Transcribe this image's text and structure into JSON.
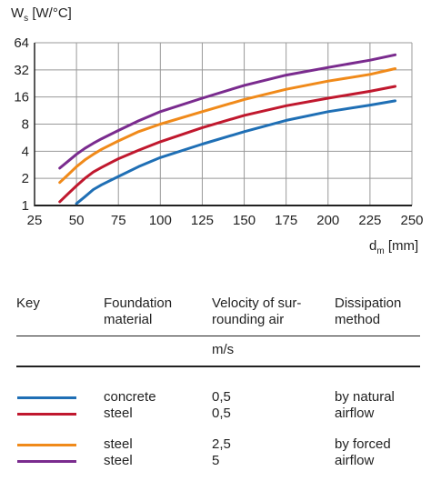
{
  "chart_data": {
    "type": "line",
    "ylabel": "W",
    "ylabel_sub": "s",
    "ylabel_unit": "[W/°C]",
    "xlabel": "d",
    "xlabel_sub": "m",
    "xlabel_unit": "[mm]",
    "xlim": [
      25,
      250
    ],
    "ylim": [
      1,
      64
    ],
    "yscale": "log2",
    "xticks": [
      "25",
      "50",
      "75",
      "100",
      "125",
      "150",
      "175",
      "200",
      "225",
      "250"
    ],
    "yticks": [
      "1",
      "2",
      "4",
      "8",
      "16",
      "32",
      "64"
    ],
    "xtick_values": [
      25,
      50,
      75,
      100,
      125,
      150,
      175,
      200,
      225,
      250
    ],
    "ytick_values": [
      1,
      2,
      4,
      8,
      16,
      32,
      64
    ],
    "grid": true,
    "series": [
      {
        "color": "#1f6fb5",
        "x": [
          50,
          55,
          60,
          65,
          75,
          87,
          100,
          125,
          150,
          175,
          200,
          225,
          240
        ],
        "y": [
          1.05,
          1.25,
          1.5,
          1.7,
          2.1,
          2.7,
          3.4,
          4.8,
          6.6,
          8.8,
          11.0,
          13.0,
          14.5
        ]
      },
      {
        "color": "#c0182e",
        "x": [
          40,
          45,
          50,
          55,
          60,
          65,
          75,
          87,
          100,
          125,
          150,
          175,
          200,
          225,
          240
        ],
        "y": [
          1.1,
          1.35,
          1.65,
          2.0,
          2.35,
          2.65,
          3.3,
          4.1,
          5.1,
          7.3,
          10.0,
          12.8,
          15.5,
          18.5,
          21.0
        ]
      },
      {
        "color": "#f08a1a",
        "x": [
          40,
          45,
          50,
          55,
          60,
          65,
          75,
          87,
          100,
          125,
          150,
          175,
          200,
          225,
          240
        ],
        "y": [
          1.8,
          2.2,
          2.7,
          3.2,
          3.7,
          4.2,
          5.2,
          6.6,
          8.0,
          11.0,
          15.0,
          19.5,
          24.0,
          28.5,
          33.0
        ]
      },
      {
        "color": "#7a2b8e",
        "x": [
          40,
          45,
          50,
          55,
          60,
          65,
          75,
          87,
          100,
          125,
          150,
          175,
          200,
          225,
          240
        ],
        "y": [
          2.6,
          3.1,
          3.7,
          4.3,
          4.9,
          5.5,
          6.8,
          8.7,
          11.0,
          15.5,
          21.5,
          28.0,
          34.0,
          41.0,
          47.0
        ]
      }
    ]
  },
  "table": {
    "headers": {
      "key": "Key",
      "foundation_1": "Foundation",
      "foundation_2": "material",
      "velocity_1": "Velocity of sur-",
      "velocity_2": "rounding air",
      "dissipation_1": "Dissipation",
      "dissipation_2": "method",
      "unit": "m/s"
    },
    "rows": [
      {
        "color": "#1f6fb5",
        "material": "concrete",
        "velocity": "0,5",
        "method": "by natural"
      },
      {
        "color": "#c0182e",
        "material": "steel",
        "velocity": "0,5",
        "method": "airflow"
      },
      {
        "color": "#f08a1a",
        "material": "steel",
        "velocity": "2,5",
        "method": "by forced"
      },
      {
        "color": "#7a2b8e",
        "material": "steel",
        "velocity": "5",
        "method": "airflow"
      }
    ]
  }
}
